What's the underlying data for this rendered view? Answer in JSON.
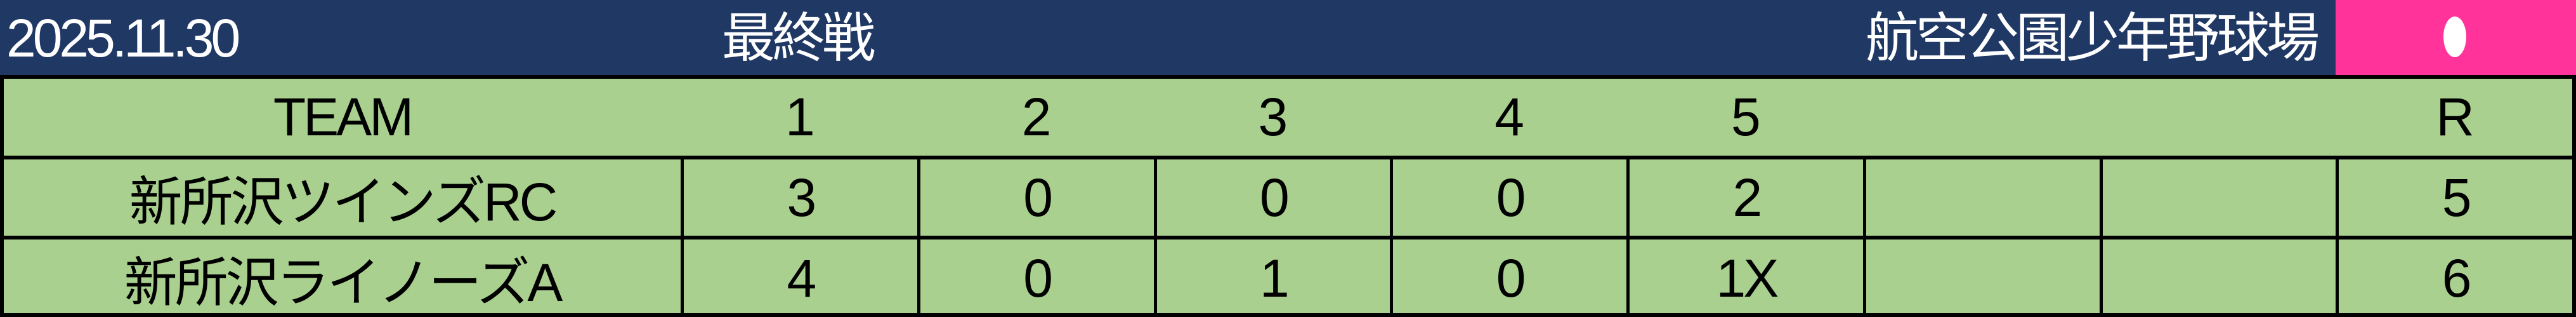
{
  "header": {
    "date": "2025.11.30",
    "round": "最終戦",
    "venue": "航空公園少年野球場",
    "status_icon": "white-dot-icon",
    "colors": {
      "header_bg": "#203864",
      "status_bg": "#ff3399",
      "board_bg": "#a9d08e"
    }
  },
  "scoreboard": {
    "columns": {
      "team": "TEAM",
      "innings": [
        "1",
        "2",
        "3",
        "4",
        "5",
        "",
        ""
      ],
      "runs": "R"
    },
    "teams": [
      {
        "name": "新所沢ツインズRC",
        "innings": [
          "3",
          "0",
          "0",
          "0",
          "2",
          "",
          ""
        ],
        "runs": "5"
      },
      {
        "name": "新所沢ライノーズA",
        "innings": [
          "4",
          "0",
          "1",
          "0",
          "1X",
          "",
          ""
        ],
        "runs": "6"
      }
    ]
  }
}
